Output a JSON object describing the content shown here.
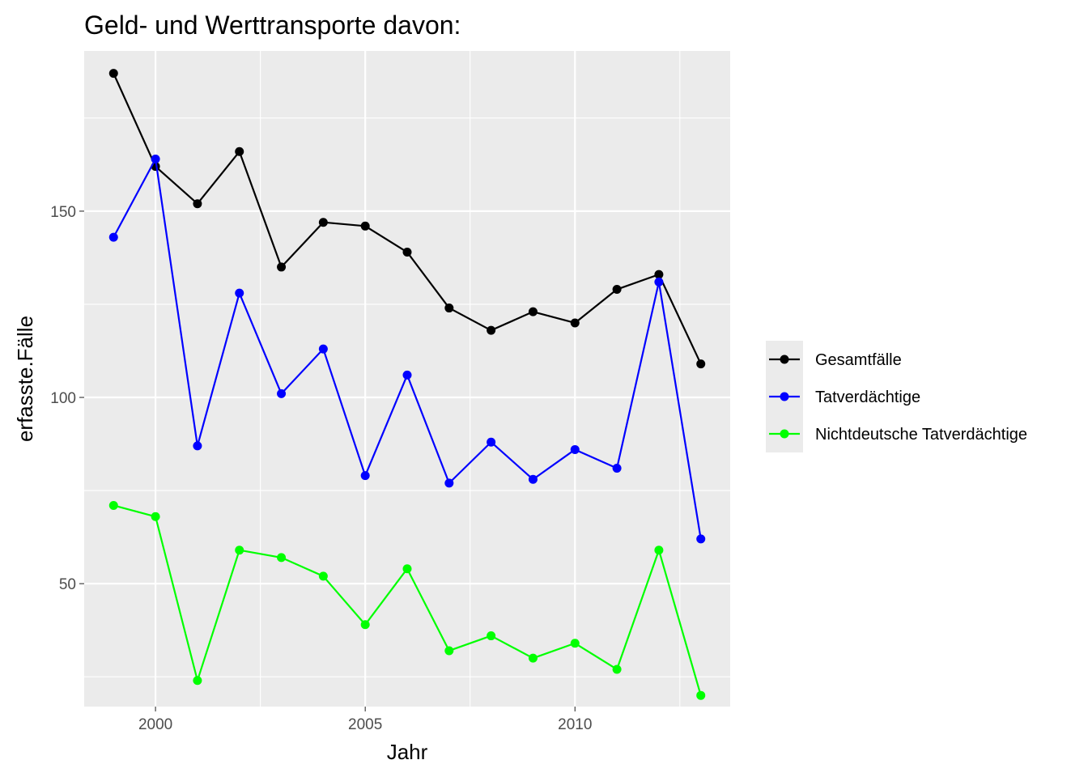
{
  "chart_data": {
    "type": "line",
    "title": "Geld- und Werttransporte davon:",
    "xlabel": "Jahr",
    "ylabel": "erfasste.Fälle",
    "x": [
      1999,
      2000,
      2001,
      2002,
      2003,
      2004,
      2005,
      2006,
      2007,
      2008,
      2009,
      2010,
      2011,
      2012,
      2013
    ],
    "xlim": [
      1998.3,
      2013.7
    ],
    "ylim": [
      17,
      193
    ],
    "x_ticks": [
      2000,
      2005,
      2010
    ],
    "x_tick_labels": [
      "2000",
      "2005",
      "2010"
    ],
    "y_ticks": [
      50,
      100,
      150
    ],
    "y_tick_labels": [
      "50",
      "100",
      "150"
    ],
    "grid": true,
    "legend_position": "right",
    "background": "#ebebeb",
    "series": [
      {
        "name": "Gesamtfälle",
        "color": "#000000",
        "values": [
          187,
          162,
          152,
          166,
          135,
          147,
          146,
          139,
          124,
          118,
          123,
          120,
          129,
          133,
          109
        ]
      },
      {
        "name": "Tatverdächtige",
        "color": "#0000ff",
        "values": [
          143,
          164,
          87,
          128,
          101,
          113,
          79,
          106,
          77,
          88,
          78,
          86,
          81,
          131,
          62
        ]
      },
      {
        "name": "Nichtdeutsche Tatverdächtige",
        "color": "#00ff00",
        "values": [
          71,
          68,
          24,
          59,
          57,
          52,
          39,
          54,
          32,
          36,
          30,
          34,
          27,
          59,
          20
        ]
      }
    ]
  }
}
